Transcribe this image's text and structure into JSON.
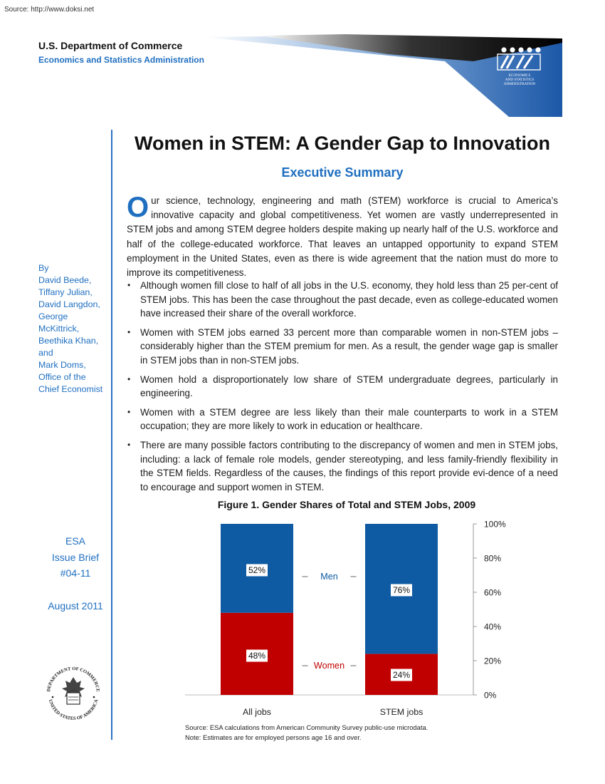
{
  "source_url": "Source: http://www.doksi.net",
  "header": {
    "department": "U.S. Department of Commerce",
    "administration": "Economics and Statistics Administration",
    "logo_lines": [
      "ECONOMICS",
      "AND STATISTICS",
      "ADMINISTRATION"
    ]
  },
  "sidebar": {
    "authors": [
      "By",
      "David Beede,",
      "Tiffany Julian,",
      "David Langdon,",
      "George",
      "McKittrick,",
      "Beethika Khan,",
      "and",
      "Mark Doms,",
      "Office of the",
      "Chief Economist"
    ],
    "brief_lines": [
      "ESA",
      "Issue Brief",
      "#04-11"
    ],
    "date": "August 2011",
    "seal_top_text": "DEPARTMENT OF COMMERCE",
    "seal_bottom_text": "UNITED STATES OF AMERICA"
  },
  "title": "Women in STEM:  A Gender Gap to Innovation",
  "subtitle": "Executive Summary",
  "intro": {
    "dropcap": "O",
    "text": "ur science, technology, engineering and math (STEM) workforce is crucial to America’s innovative capacity and global competitiveness.  Yet women are vastly underrepresented in STEM jobs and among STEM degree holders despite making up nearly half of the U.S. workforce and half of the college-educated workforce. That leaves an untapped opportunity to expand STEM employment in the United States, even as there is wide agreement that the nation must do more to improve its competitiveness."
  },
  "bullets": [
    "Although women fill close to half of all jobs in the U.S. economy, they hold less than 25 per-cent of STEM jobs.  This has been the case throughout the past decade, even as college-educated women have increased their share of the overall workforce.",
    "Women with STEM jobs earned 33 percent more than comparable women in non-STEM jobs – considerably higher than the STEM premium for men. As a result, the gender wage gap is smaller in STEM jobs than in non-STEM jobs.",
    "Women hold a disproportionately low share of STEM undergraduate degrees, particularly in engineering.",
    "Women with a STEM degree are less likely than their male counterparts to work in a STEM occupation; they are more likely to work in education or healthcare.",
    "There are many possible factors contributing to the discrepancy of women and men in STEM jobs, including: a lack of female role models, gender stereotyping, and less family-friendly flexibility in the STEM fields.  Regardless of the causes, the findings of this report provide evi-dence of a need to encourage and support women in STEM."
  ],
  "figure": {
    "title": "Figure 1. Gender Shares of Total and STEM Jobs, 2009",
    "source_note": "Source:  ESA calculations from American Community Survey public-use microdata.",
    "estimate_note": "Note: Estimates are for employed persons age 16 and over."
  },
  "chart_data": {
    "type": "bar",
    "stacked": true,
    "title": "Figure 1. Gender Shares of Total and STEM Jobs, 2009",
    "categories": [
      "All jobs",
      "STEM jobs"
    ],
    "series": [
      {
        "name": "Women",
        "values": [
          48,
          24
        ],
        "labels": [
          "48%",
          "24%"
        ],
        "color": "#c00000"
      },
      {
        "name": "Men",
        "values": [
          52,
          76
        ],
        "labels": [
          "52%",
          "76%"
        ],
        "color": "#0e5ba3"
      }
    ],
    "ylim": [
      0,
      100
    ],
    "yticks": [
      "0%",
      "20%",
      "40%",
      "60%",
      "80%",
      "100%"
    ],
    "yaxis_position": "right",
    "legend": "inline-between-bars"
  },
  "colors": {
    "accent_blue": "#1f6fc0",
    "men": "#0e5ba3",
    "women": "#c00000"
  }
}
